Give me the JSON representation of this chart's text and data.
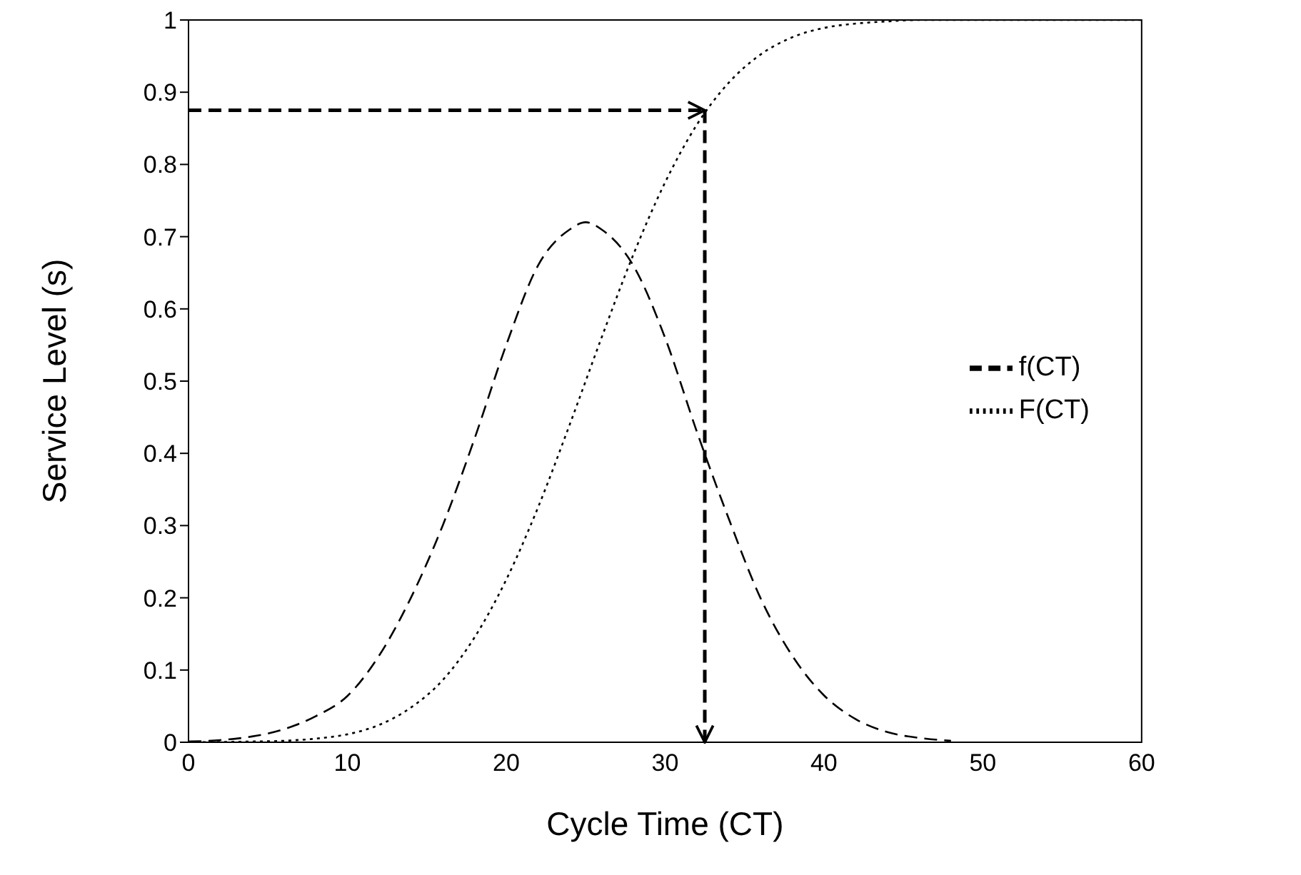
{
  "chart_data": {
    "type": "line",
    "xlabel": "Cycle Time (CT)",
    "ylabel": "Service Level (s)",
    "xlim": [
      0,
      60
    ],
    "xticks": [
      0,
      10,
      20,
      30,
      40,
      50,
      60
    ],
    "ylim": [
      0,
      1
    ],
    "yticks": [
      0,
      0.1,
      0.2,
      0.3,
      0.4,
      0.5,
      0.6,
      0.7,
      0.8,
      0.9,
      1
    ],
    "legend": "right",
    "marker": "none",
    "series": [
      {
        "name": "f(CT)",
        "color": "#000000",
        "line_style": "dashed",
        "x": [
          0,
          2,
          4,
          6,
          8,
          10,
          12,
          14,
          16,
          18,
          20,
          22,
          24,
          25,
          26,
          28,
          30,
          32,
          34,
          36,
          38,
          40,
          42,
          44,
          46,
          48
        ],
        "values": [
          0.001,
          0.003,
          0.008,
          0.018,
          0.036,
          0.064,
          0.12,
          0.2,
          0.3,
          0.42,
          0.55,
          0.66,
          0.71,
          0.72,
          0.71,
          0.66,
          0.56,
          0.43,
          0.31,
          0.2,
          0.12,
          0.065,
          0.032,
          0.014,
          0.006,
          0.002
        ]
      },
      {
        "name": "F(CT)",
        "color": "#000000",
        "line_style": "dotted",
        "x": [
          0,
          4,
          6,
          8,
          10,
          12,
          14,
          16,
          18,
          20,
          22,
          24,
          26,
          28,
          30,
          32,
          34,
          36,
          38,
          40,
          42,
          44,
          46,
          50,
          60
        ],
        "values": [
          0,
          0.001,
          0.002,
          0.005,
          0.011,
          0.024,
          0.048,
          0.086,
          0.145,
          0.225,
          0.325,
          0.44,
          0.56,
          0.675,
          0.775,
          0.855,
          0.913,
          0.952,
          0.976,
          0.989,
          0.995,
          0.998,
          1,
          1,
          1
        ]
      }
    ],
    "ref_lines": [
      {
        "axis": "y",
        "value": 0.875,
        "line_style": "dashed",
        "color": "#000000"
      },
      {
        "axis": "x",
        "value": 32.5,
        "line_style": "dashed",
        "color": "#000000"
      }
    ]
  }
}
